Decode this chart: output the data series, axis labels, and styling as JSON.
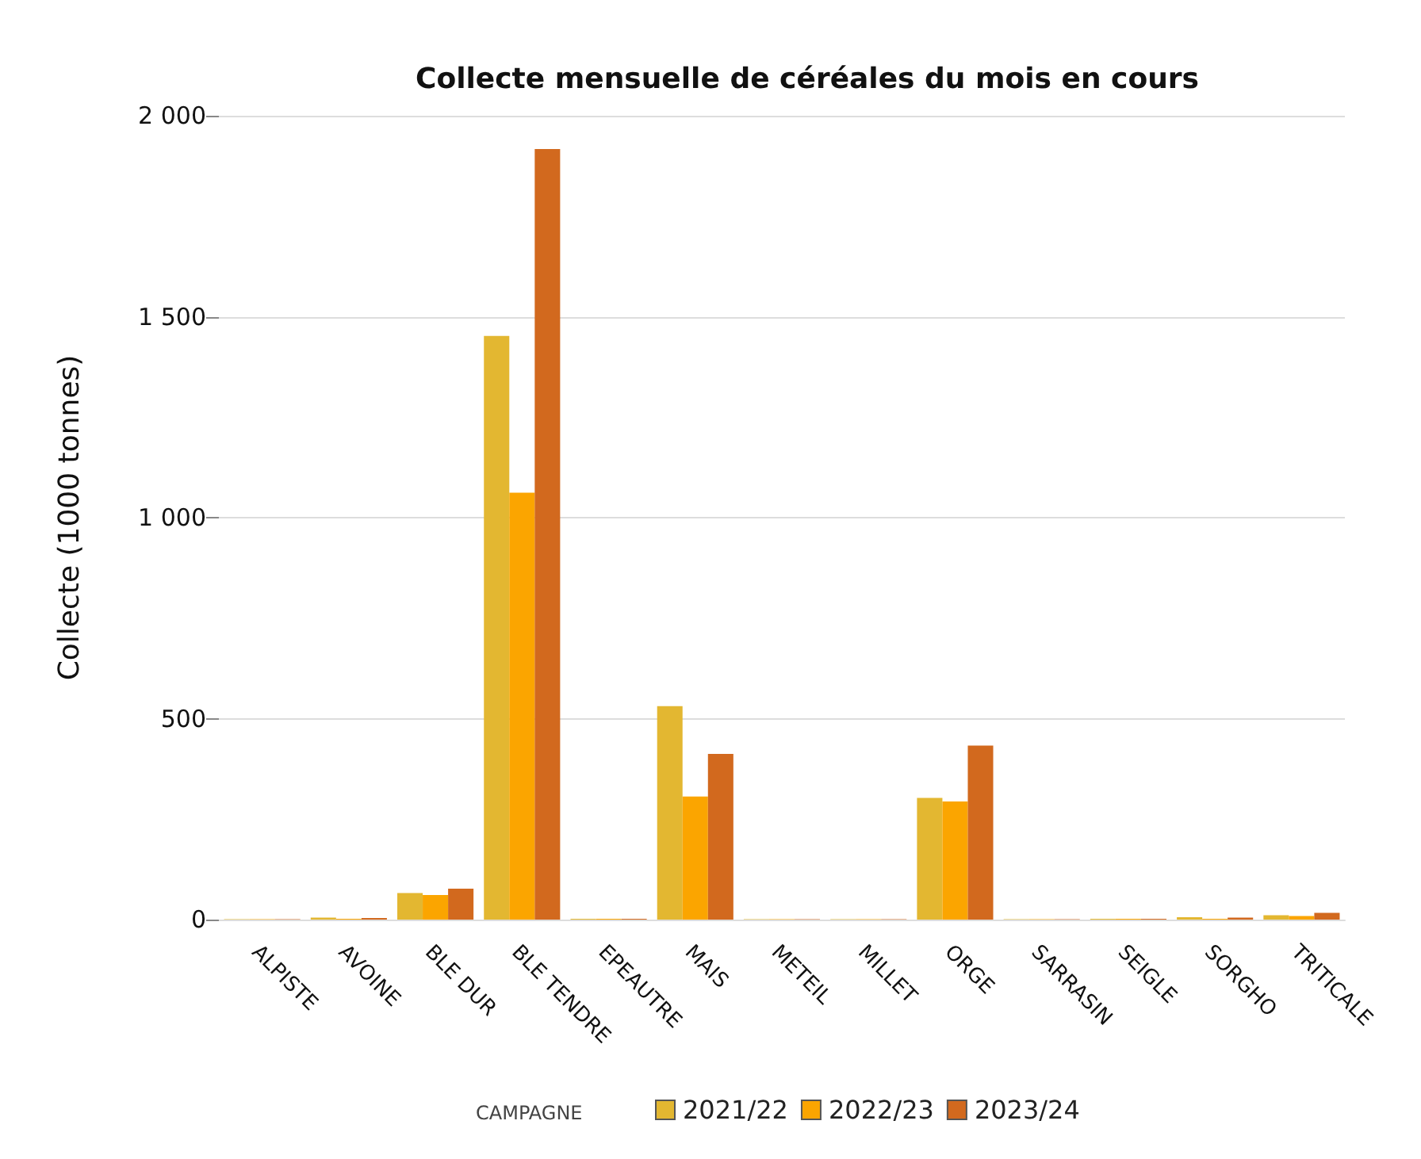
{
  "chart_data": {
    "type": "bar",
    "title": "Collecte mensuelle de céréales du mois en cours",
    "ylabel": "Collecte (1000 tonnes)",
    "legend_title": "CAMPAGNE",
    "categories": [
      "ALPISTE",
      "AVOINE",
      "BLE DUR",
      "BLE TENDRE",
      "EPEAUTRE",
      "MAIS",
      "METEIL",
      "MILLET",
      "ORGE",
      "SARRASIN",
      "SEIGLE",
      "SORGHO",
      "TRITICALE"
    ],
    "series": [
      {
        "name": "2021/22",
        "color": "#e3b731",
        "values": [
          1,
          5,
          66,
          1452,
          2,
          531,
          1,
          1,
          303,
          1,
          2,
          6,
          11
        ]
      },
      {
        "name": "2022/23",
        "color": "#fba500",
        "values": [
          1,
          2,
          61,
          1062,
          2,
          306,
          1,
          1,
          294,
          1,
          2,
          2,
          9
        ]
      },
      {
        "name": "2023/24",
        "color": "#d2691e",
        "values": [
          1,
          4,
          77,
          1917,
          2,
          412,
          1,
          1,
          433,
          1,
          2,
          5,
          17
        ]
      }
    ],
    "ylim": [
      0,
      2000
    ],
    "yticks": [
      0,
      500,
      {
        "value": 1000,
        "label": "1 000"
      },
      {
        "value": 1500,
        "label": "1 500"
      },
      {
        "value": 2000,
        "label": "2 000"
      }
    ],
    "grid": "y",
    "legend": "bottom"
  }
}
